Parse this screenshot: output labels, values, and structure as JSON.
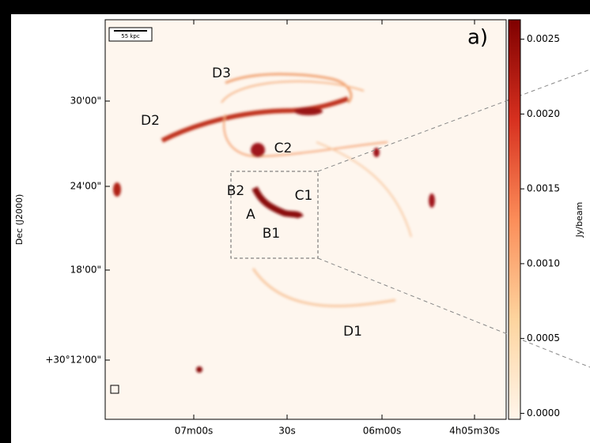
{
  "figure": {
    "panel_label": "a)",
    "scale_bar": "55 kpc",
    "region_labels": [
      {
        "text": "D3"
      },
      {
        "text": "D2"
      },
      {
        "text": "C2"
      },
      {
        "text": "B2"
      },
      {
        "text": "C1"
      },
      {
        "text": "A"
      },
      {
        "text": "B1"
      },
      {
        "text": "D1"
      }
    ],
    "x_ticks": [
      "07m00s",
      "30s",
      "06m00s",
      "4h05m30s"
    ],
    "y_ticks": [
      "30'00\"",
      "24'00\"",
      "18'00\"",
      "+30°12'00\""
    ],
    "y_label": "Dec (J2000)",
    "colorbar": {
      "label": "Jy/beam",
      "lim": [
        -4e-05,
        0.00263
      ],
      "ticks": [
        {
          "value": 0,
          "label": "0.0000"
        },
        0.0005,
        {
          "value": 0.001,
          "label": "0.0010"
        },
        0.0015,
        {
          "value": 0.002,
          "label": "0.0020"
        },
        0.0025
      ]
    }
  }
}
